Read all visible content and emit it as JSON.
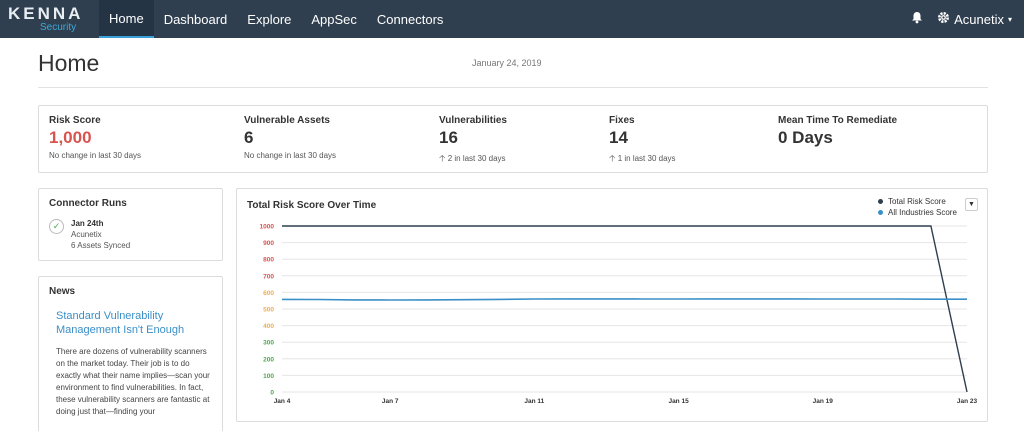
{
  "app": {
    "logo_main": "KENNA",
    "logo_sub": "Security"
  },
  "nav": {
    "items": [
      "Home",
      "Dashboard",
      "Explore",
      "AppSec",
      "Connectors"
    ],
    "active": "Home",
    "account_label": "Acunetix"
  },
  "header": {
    "title": "Home",
    "date": "January 24, 2019"
  },
  "stats": [
    {
      "label": "Risk Score",
      "value": "1,000",
      "sub": "No change in last 30 days",
      "arrow": ""
    },
    {
      "label": "Vulnerable Assets",
      "value": "6",
      "sub": "No change in last 30 days",
      "arrow": ""
    },
    {
      "label": "Vulnerabilities",
      "value": "16",
      "sub": "2 in last 30 days",
      "arrow": "up"
    },
    {
      "label": "Fixes",
      "value": "14",
      "sub": "1 in last 30 days",
      "arrow": "up"
    },
    {
      "label": "Mean Time To Remediate",
      "value": "0 Days",
      "sub": "",
      "arrow": ""
    }
  ],
  "connector_runs": {
    "title": "Connector Runs",
    "date": "Jan 24th",
    "connector": "Acunetix",
    "status": "6 Assets Synced"
  },
  "news": {
    "title": "News",
    "headline": "Standard Vulnerability Management Isn't Enough",
    "body": "There are dozens of vulnerability scanners on the market today. Their job is to do exactly what their name implies—scan your environment to find vulnerabilities. In fact, these vulnerability scanners are fantastic at doing just that—finding your"
  },
  "colors": {
    "nav_bg": "#2f3f4f",
    "accent": "#3aa0d8",
    "risk_red": "#d9534f",
    "series_total": "#2f3f4f",
    "series_industry": "#3a8fc8"
  },
  "chart_data": {
    "type": "line",
    "title": "Total Risk Score Over Time",
    "x": [
      "Jan 4",
      "Jan 5",
      "Jan 6",
      "Jan 7",
      "Jan 8",
      "Jan 9",
      "Jan 10",
      "Jan 11",
      "Jan 12",
      "Jan 13",
      "Jan 14",
      "Jan 15",
      "Jan 16",
      "Jan 17",
      "Jan 18",
      "Jan 19",
      "Jan 20",
      "Jan 21",
      "Jan 22",
      "Jan 23"
    ],
    "x_ticks": [
      "Jan 4",
      "Jan 7",
      "Jan 11",
      "Jan 15",
      "Jan 19",
      "Jan 23"
    ],
    "ylim": [
      0,
      1000
    ],
    "y_ticks": [
      0,
      100,
      200,
      300,
      400,
      500,
      600,
      700,
      800,
      900,
      1000
    ],
    "y_tick_colors": [
      "#4aaa4a",
      "#4aaa4a",
      "#4aaa4a",
      "#4aaa4a",
      "#f0ad4e",
      "#f0ad4e",
      "#f0ad4e",
      "#d9534f",
      "#d9534f",
      "#d9534f",
      "#d9534f"
    ],
    "grid": true,
    "legend_position": "top-right",
    "series": [
      {
        "name": "Total Risk Score",
        "color": "#2f3f4f",
        "values": [
          1000,
          1000,
          1000,
          1000,
          1000,
          1000,
          1000,
          1000,
          1000,
          1000,
          1000,
          1000,
          1000,
          1000,
          1000,
          1000,
          1000,
          1000,
          1000,
          0
        ]
      },
      {
        "name": "All Industries Score",
        "color": "#3a8fc8",
        "values": [
          558,
          557,
          555,
          554,
          555,
          556,
          558,
          560,
          561,
          561,
          560,
          560,
          561,
          561,
          561,
          560,
          560,
          560,
          559,
          559
        ]
      }
    ]
  }
}
